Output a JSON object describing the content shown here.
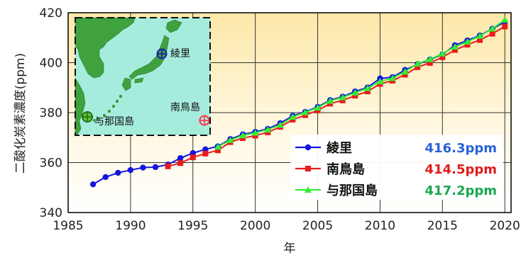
{
  "chart_data": {
    "type": "line",
    "xlabel": "年",
    "ylabel": "二酸化炭素濃度(ppm)",
    "xlim": [
      1985,
      2020.5
    ],
    "ylim": [
      340,
      420
    ],
    "xticks": [
      "1985",
      "1990",
      "1995",
      "2000",
      "2005",
      "2010",
      "2015",
      "2020"
    ],
    "yticks": [
      "340",
      "360",
      "380",
      "400",
      "420"
    ],
    "grid": true,
    "legend_position": "bottom-right",
    "series": [
      {
        "name": "綾里",
        "latest": "416.3ppm",
        "color": "#1515e0",
        "value_color": "#2a62d8",
        "marker": "circle",
        "x": [
          1987,
          1988,
          1989,
          1990,
          1991,
          1992,
          1993,
          1994,
          1995,
          1996,
          1997,
          1998,
          1999,
          2000,
          2001,
          2002,
          2003,
          2004,
          2005,
          2006,
          2007,
          2008,
          2009,
          2010,
          2011,
          2012,
          2013,
          2014,
          2015,
          2016,
          2017,
          2018,
          2019,
          2020
        ],
        "y": [
          351.3,
          354.2,
          355.9,
          357.0,
          358.0,
          358.2,
          359.2,
          361.8,
          363.8,
          365.3,
          366.5,
          369.4,
          371.3,
          372.3,
          373.5,
          375.8,
          378.7,
          380.3,
          382.3,
          385.0,
          386.4,
          388.5,
          390.1,
          393.7,
          394.2,
          397.1,
          399.4,
          401.3,
          403.3,
          407.0,
          408.9,
          410.9,
          413.6,
          416.3
        ]
      },
      {
        "name": "南鳥島",
        "latest": "414.5ppm",
        "color": "#e81c1c",
        "value_color": "#e01b1b",
        "marker": "square",
        "x": [
          1993,
          1994,
          1995,
          1996,
          1997,
          1998,
          1999,
          2000,
          2001,
          2002,
          2003,
          2004,
          2005,
          2006,
          2007,
          2008,
          2009,
          2010,
          2011,
          2012,
          2013,
          2014,
          2015,
          2016,
          2017,
          2018,
          2019,
          2020
        ],
        "y": [
          358.5,
          359.8,
          362.1,
          363.6,
          364.9,
          368.2,
          369.8,
          370.8,
          372.1,
          374.3,
          377.2,
          379.0,
          380.9,
          383.6,
          384.9,
          386.8,
          388.5,
          391.5,
          392.8,
          395.2,
          398.2,
          399.9,
          402.2,
          405.1,
          407.2,
          409.1,
          411.6,
          414.5
        ]
      },
      {
        "name": "与那国島",
        "latest": "417.2ppm",
        "color": "#33ee33",
        "value_color": "#19a850",
        "marker": "triangle",
        "x": [
          1997,
          1998,
          1999,
          2000,
          2001,
          2002,
          2003,
          2004,
          2005,
          2006,
          2007,
          2008,
          2009,
          2010,
          2011,
          2012,
          2013,
          2014,
          2015,
          2016,
          2017,
          2018,
          2019,
          2020
        ],
        "y": [
          366.3,
          369.0,
          370.9,
          371.9,
          373.2,
          375.1,
          378.3,
          380.1,
          382.0,
          384.7,
          386.1,
          388.0,
          389.8,
          392.5,
          393.8,
          396.4,
          399.6,
          401.4,
          403.6,
          406.4,
          408.4,
          410.7,
          413.6,
          417.2
        ]
      }
    ]
  },
  "inset_map": {
    "labels": {
      "ryori": "綾里",
      "minamitorishima": "南鳥島",
      "yonaguni": "与那国島"
    },
    "colors": {
      "sea": "#a6ecdd",
      "land": "#3fa23f",
      "ryori_marker": "#1a1ab4",
      "minamitorishima_marker": "#ff3344",
      "yonaguni_marker": "#2a6b12"
    }
  }
}
